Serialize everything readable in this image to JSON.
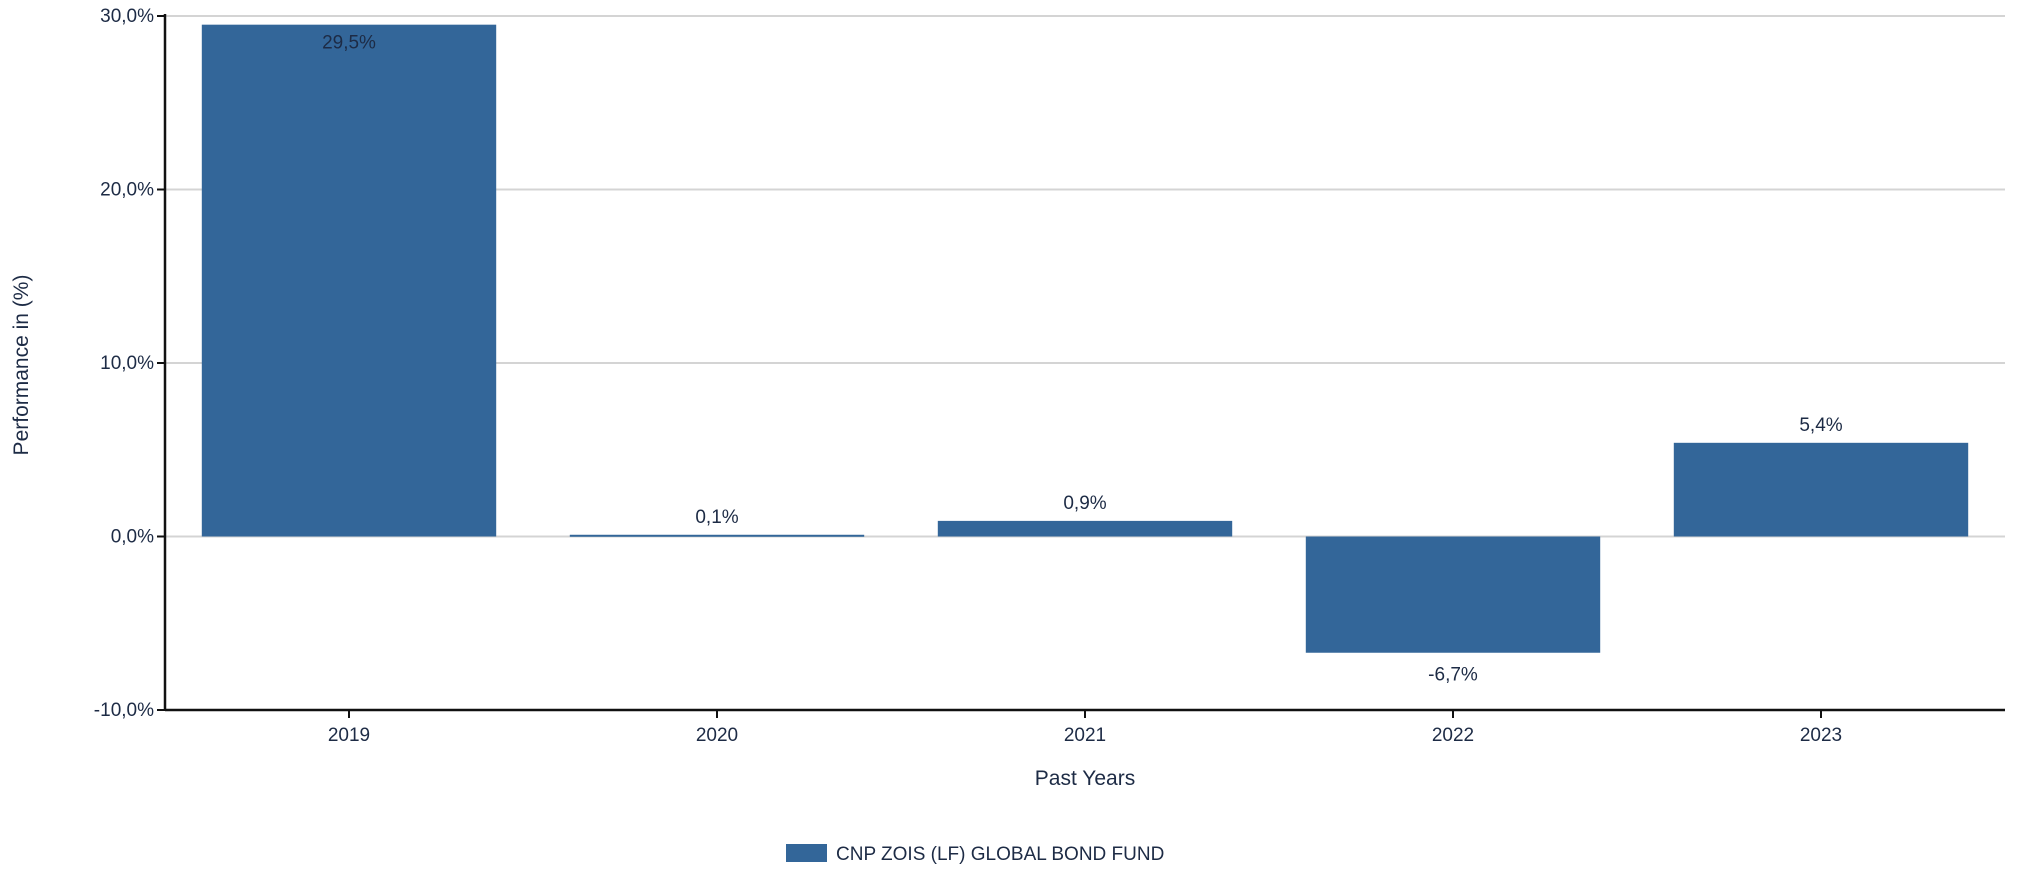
{
  "chart_data": {
    "type": "bar",
    "categories": [
      "2019",
      "2020",
      "2021",
      "2022",
      "2023"
    ],
    "series": [
      {
        "name": "CNP ZOIS (LF) GLOBAL BOND FUND",
        "values": [
          29.5,
          0.1,
          0.9,
          -6.7,
          5.4
        ],
        "labels": [
          "29,5%",
          "0,1%",
          "0,9%",
          "-6,7%",
          "5,4%"
        ],
        "color": "#336699"
      }
    ],
    "xlabel": "Past Years",
    "ylabel": "Performance in (%)",
    "ylim": [
      -10,
      30
    ],
    "yticks": [
      -10,
      0,
      10,
      20,
      30
    ],
    "ytick_labels": [
      "-10,0%",
      "0,0%",
      "10,0%",
      "20,0%",
      "30,0%"
    ],
    "grid": true,
    "legend_position": "bottom-center"
  },
  "colors": {
    "bar": "#336699",
    "grid": "#d4d4d4",
    "axis": "#111111",
    "text": "#1d2b45"
  }
}
